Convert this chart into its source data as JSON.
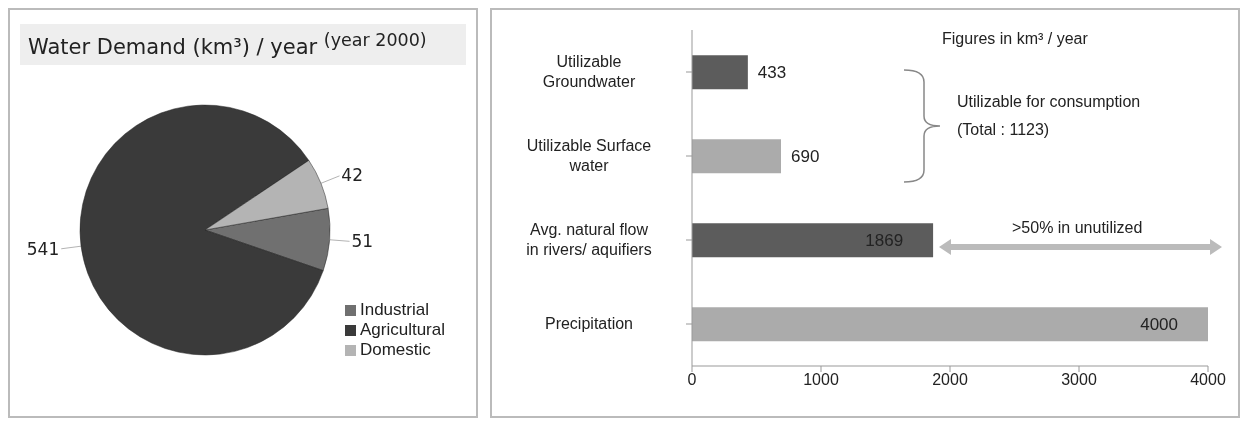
{
  "chart_data": [
    {
      "type": "pie",
      "title": "Water Demand (km³) / year $^{(year 2000)}$",
      "categories": [
        "Industrial",
        "Agricultural",
        "Domestic"
      ],
      "values": [
        51,
        541,
        42
      ],
      "colors": [
        "#707070",
        "#3a3a3a",
        "#b4b4b4"
      ],
      "data_labels": true,
      "legend": "right"
    },
    {
      "type": "bar",
      "orientation": "horizontal",
      "categories": [
        "Utilizable\nGroundwater",
        "Utilizable Surface\nwater",
        "Avg. natural flow\nin rivers/ aquifiers",
        "Precipitation"
      ],
      "values": [
        433,
        690,
        1869,
        4000
      ],
      "colors": [
        "#5c5c5c",
        "#ababab",
        "#5c5c5c",
        "#ababab"
      ],
      "xlim": [
        0,
        4000
      ],
      "xticks": [
        0,
        1000,
        2000,
        3000,
        4000
      ],
      "data_labels": true,
      "grid": false,
      "annotations": [
        "Figures in km³ / year",
        "Utilizable for consumption\n(Total : 1123)",
        ">50% in unutilized"
      ]
    }
  ]
}
